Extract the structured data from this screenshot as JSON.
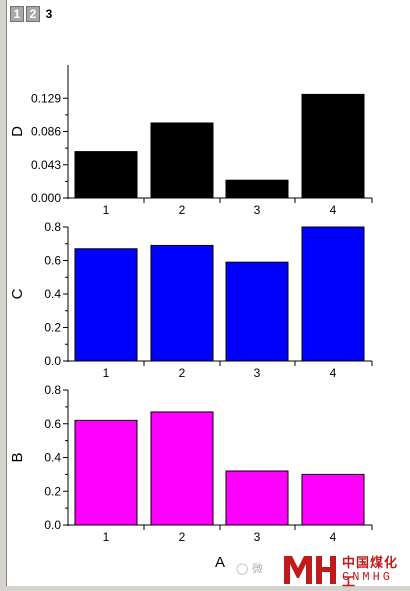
{
  "tabs": [
    {
      "label": "1",
      "active": false
    },
    {
      "label": "2",
      "active": false
    },
    {
      "label": "3",
      "active": true
    }
  ],
  "watermark": {
    "chat_icon_text": "微",
    "brand_cn": "中国煤化工",
    "brand_en": "CNMHG",
    "brand_color": "#c21a1a"
  },
  "chart_data": [
    {
      "type": "bar",
      "categories": [
        "1",
        "2",
        "3",
        "4"
      ],
      "values": [
        0.06,
        0.097,
        0.023,
        0.134
      ],
      "ylabel": "D",
      "yticks": [
        "0.000",
        "0.043",
        "0.086",
        "0.129"
      ],
      "ylim": [
        0,
        0.172
      ],
      "color": "#000000"
    },
    {
      "type": "bar",
      "categories": [
        "1",
        "2",
        "3",
        "4"
      ],
      "values": [
        0.67,
        0.69,
        0.59,
        0.8
      ],
      "ylabel": "C",
      "yticks": [
        "0.0",
        "0.2",
        "0.4",
        "0.6",
        "0.8"
      ],
      "ylim": [
        0,
        0.8
      ],
      "color": "#0000ff"
    },
    {
      "type": "bar",
      "categories": [
        "1",
        "2",
        "3",
        "4"
      ],
      "values": [
        0.62,
        0.67,
        0.32,
        0.3
      ],
      "ylabel": "B",
      "xlabel": "A",
      "yticks": [
        "0.0",
        "0.2",
        "0.4",
        "0.6",
        "0.8"
      ],
      "ylim": [
        0,
        0.8
      ],
      "color": "#ff00ff"
    }
  ]
}
